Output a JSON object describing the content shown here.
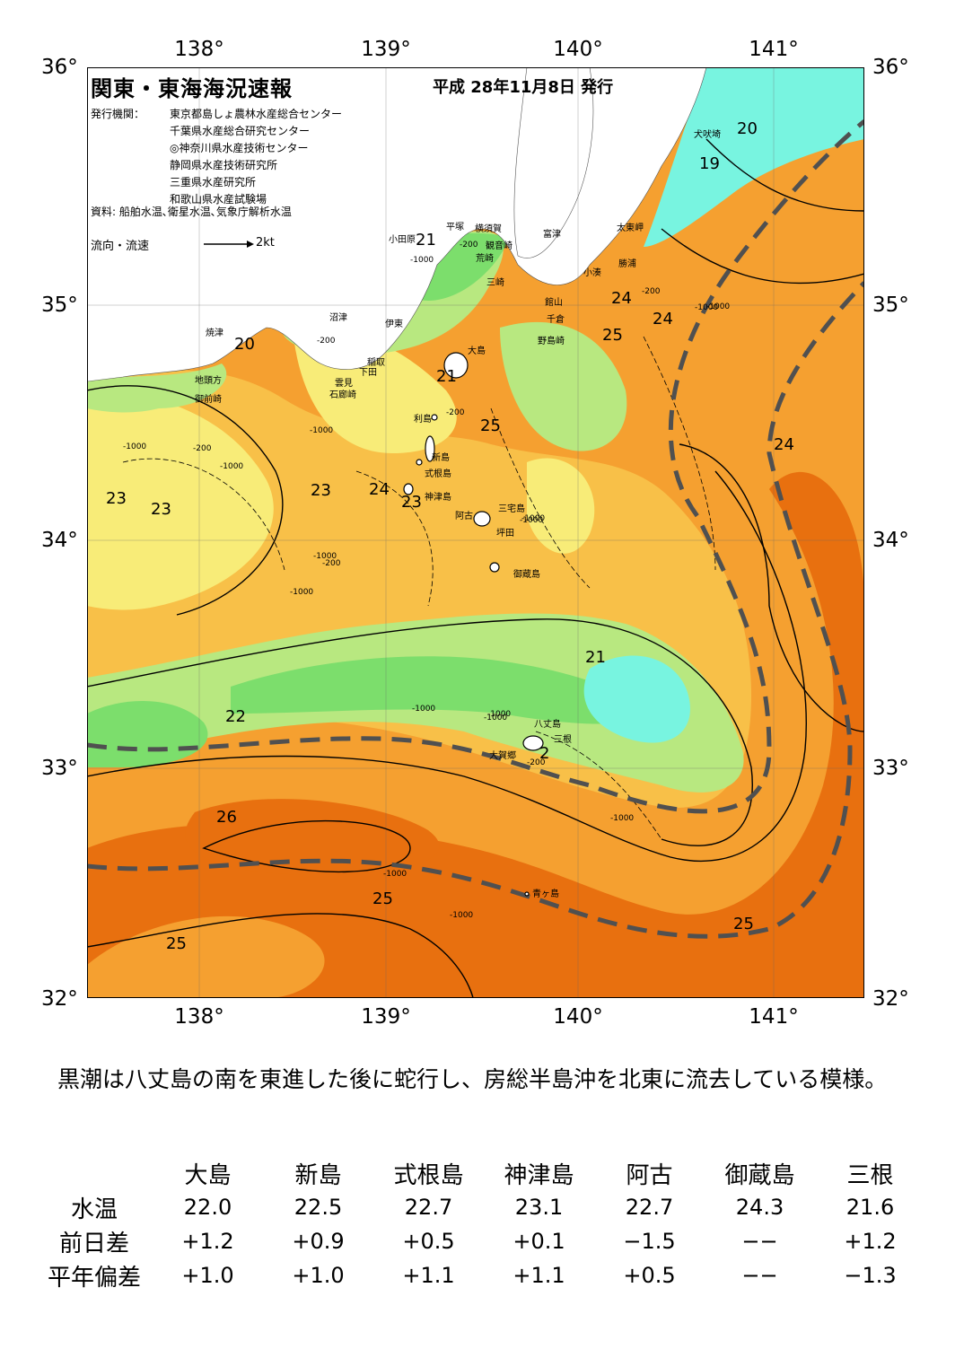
{
  "header": {
    "title": "関東・東海海況速報",
    "issue_date": "平成 28年11月8日 発行",
    "issuer_label": "発行機関：",
    "issuers": [
      "東京都島しょ農林水産総合センター",
      "千葉県水産総合研究センター",
      "◎神奈川県水産技術センター",
      "静岡県水産技術研究所",
      "三重県水産研究所",
      "和歌山県水産試験場"
    ],
    "sources": "資料: 船舶水温､衛星水温､気象庁解析水温",
    "current_legend": "流向・流速",
    "current_scale": "2kt"
  },
  "axes": {
    "lon_labels": [
      "138°",
      "139°",
      "140°",
      "141°"
    ],
    "lat_labels": [
      "36°",
      "35°",
      "34°",
      "33°",
      "32°"
    ]
  },
  "colors": {
    "warm_dark": "#e8700f",
    "warm": "#f5a030",
    "orange_light": "#f8c048",
    "yellow": "#f8ec78",
    "green_light": "#b8e880",
    "green": "#7cde6c",
    "cyan": "#78f4e0",
    "land": "#ffffff",
    "kuroshio_axis": "#505050"
  },
  "places": {
    "inubosaki": "犬吠埼",
    "taitomisaki": "太東岬",
    "katsuura": "勝浦",
    "kominato": "小湊",
    "tateyama": "館山",
    "chikura": "千倉",
    "nojimazaki": "野島崎",
    "futtsu": "富津",
    "kannonzaki": "観音崎",
    "yokosuka": "横須賀",
    "arasaki": "荒崎",
    "misaki": "三崎",
    "hiratsuka": "平塚",
    "odawara": "小田原",
    "numazu": "沼津",
    "ito": "伊東",
    "inatori": "稲取",
    "shimoda": "下田",
    "kumomi": "雲見",
    "irozaki": "石廊崎",
    "yaizu": "焼津",
    "jitogata": "地頭方",
    "omaezaki": "御前崎",
    "oshima": "大島",
    "toshima": "利島",
    "niijima": "新島",
    "shikinejima": "式根島",
    "kozushima": "神津島",
    "miyakejima": "三宅島",
    "ako": "阿古",
    "tsubota": "坪田",
    "mikurajima": "御蔵島",
    "hachijojima": "八丈島",
    "sanne": "三根",
    "okago": "大賀郷",
    "aogashima": "青ヶ島"
  },
  "isotherms": [
    "20",
    "19",
    "21",
    "24",
    "24",
    "25",
    "24",
    "20",
    "21",
    "25",
    "23",
    "23",
    "23",
    "24",
    "23",
    "21",
    "22",
    "2",
    "26",
    "25",
    "25",
    "25"
  ],
  "depths": [
    "-200",
    "-1000",
    "-1000",
    "-200",
    "-1000",
    "-1000",
    "-200",
    "-1000",
    "-1000",
    "-200",
    "-200",
    "-1000",
    "-1000",
    "-1000",
    "-1000",
    "-1000",
    "-200",
    "-1000",
    "-1000",
    "-1000",
    "-1000",
    "-1000",
    "-200"
  ],
  "summary": "黒潮は八丈島の南を東進した後に蛇行し、房総半島沖を北東に流去している模様。",
  "observations": {
    "stations": [
      "大島",
      "新島",
      "式根島",
      "神津島",
      "阿古",
      "御蔵島",
      "三根"
    ],
    "rows": [
      {
        "label": "水温",
        "values": [
          "22.0",
          "22.5",
          "22.7",
          "23.1",
          "22.7",
          "24.3",
          "21.6"
        ]
      },
      {
        "label": "前日差",
        "values": [
          "+1.2",
          "+0.9",
          "+0.5",
          "+0.1",
          "−1.5",
          "−−",
          "+1.2"
        ]
      },
      {
        "label": "平年偏差",
        "values": [
          "+1.0",
          "+1.0",
          "+1.1",
          "+1.1",
          "+0.5",
          "−−",
          "−1.3"
        ]
      }
    ]
  }
}
